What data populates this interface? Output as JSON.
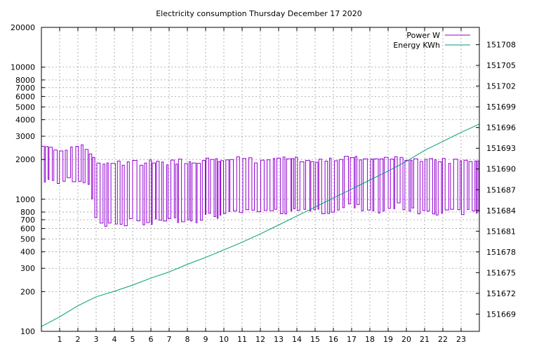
{
  "chart_data": {
    "type": "line",
    "title": "Electricity consumption Thursday December 17 2020",
    "xlabel": "",
    "ylabel": "",
    "xlim": [
      0,
      24
    ],
    "x_ticks": [
      1,
      2,
      3,
      4,
      5,
      6,
      7,
      8,
      9,
      10,
      11,
      12,
      13,
      14,
      15,
      16,
      17,
      18,
      19,
      20,
      21,
      22,
      23
    ],
    "y_left": {
      "scale": "log",
      "ylim": [
        100,
        20000
      ],
      "ticks": [
        100,
        200,
        300,
        400,
        500,
        600,
        700,
        800,
        1000,
        2000,
        3000,
        4000,
        5000,
        6000,
        7000,
        8000,
        10000,
        20000
      ]
    },
    "y_right": {
      "scale": "linear",
      "ylim": [
        151666.5,
        151710.5
      ],
      "ticks": [
        151669,
        151672,
        151675,
        151678,
        151681,
        151684,
        151687,
        151690,
        151693,
        151696,
        151699,
        151702,
        151705,
        151708
      ]
    },
    "grid": true,
    "legend_position": "top-right",
    "series": [
      {
        "name": "Power W",
        "axis": "left",
        "color": "#9400d3",
        "style": "step-oscillating",
        "x": [
          0,
          0.5,
          1,
          1.5,
          2,
          2.5,
          2.8,
          3,
          3.5,
          4,
          4.5,
          5,
          5.5,
          6,
          6.5,
          7,
          7.5,
          8,
          8.5,
          9,
          9.5,
          10,
          10.5,
          11,
          11.5,
          12,
          12.5,
          13,
          13.5,
          14,
          14.5,
          15,
          15.5,
          16,
          16.5,
          17,
          17.5,
          18,
          18.5,
          19,
          19.5,
          20,
          20.5,
          21,
          21.5,
          22,
          22.5,
          23,
          23.5,
          24
        ],
        "high": [
          2500,
          2500,
          2400,
          2500,
          2500,
          2400,
          2000,
          1900,
          1900,
          1900,
          1850,
          1900,
          1900,
          1900,
          1850,
          1900,
          1950,
          1950,
          1950,
          2000,
          1950,
          2000,
          2000,
          2000,
          1950,
          2000,
          2000,
          2150,
          2000,
          2000,
          1950,
          2000,
          2000,
          2000,
          2000,
          2100,
          2000,
          2000,
          2000,
          2050,
          2000,
          2000,
          2000,
          2000,
          2000,
          2000,
          1950,
          2000,
          2000,
          2000
        ],
        "low": [
          1400,
          1350,
          1350,
          1400,
          1400,
          1350,
          900,
          650,
          650,
          650,
          650,
          700,
          650,
          650,
          700,
          700,
          700,
          700,
          700,
          750,
          750,
          750,
          800,
          800,
          800,
          800,
          800,
          800,
          820,
          830,
          850,
          830,
          800,
          850,
          850,
          900,
          850,
          800,
          800,
          850,
          900,
          850,
          800,
          850,
          800,
          800,
          800,
          800,
          800,
          800
        ]
      },
      {
        "name": "Energy KWh",
        "axis": "right",
        "color": "#009e73",
        "x": [
          0,
          1,
          2,
          3,
          4,
          5,
          6,
          7,
          8,
          9,
          10,
          11,
          12,
          13,
          14,
          15,
          16,
          17,
          18,
          19,
          20,
          21,
          22,
          23,
          24
        ],
        "y": [
          151667.2,
          151668.6,
          151670.2,
          151671.5,
          151672.3,
          151673.2,
          151674.2,
          151675.1,
          151676.2,
          151677.2,
          151678.3,
          151679.4,
          151680.6,
          151681.9,
          151683.2,
          151684.5,
          151685.8,
          151687.1,
          151688.4,
          151689.7,
          151691.1,
          151692.7,
          151694.0,
          151695.3,
          151696.5
        ]
      }
    ]
  }
}
